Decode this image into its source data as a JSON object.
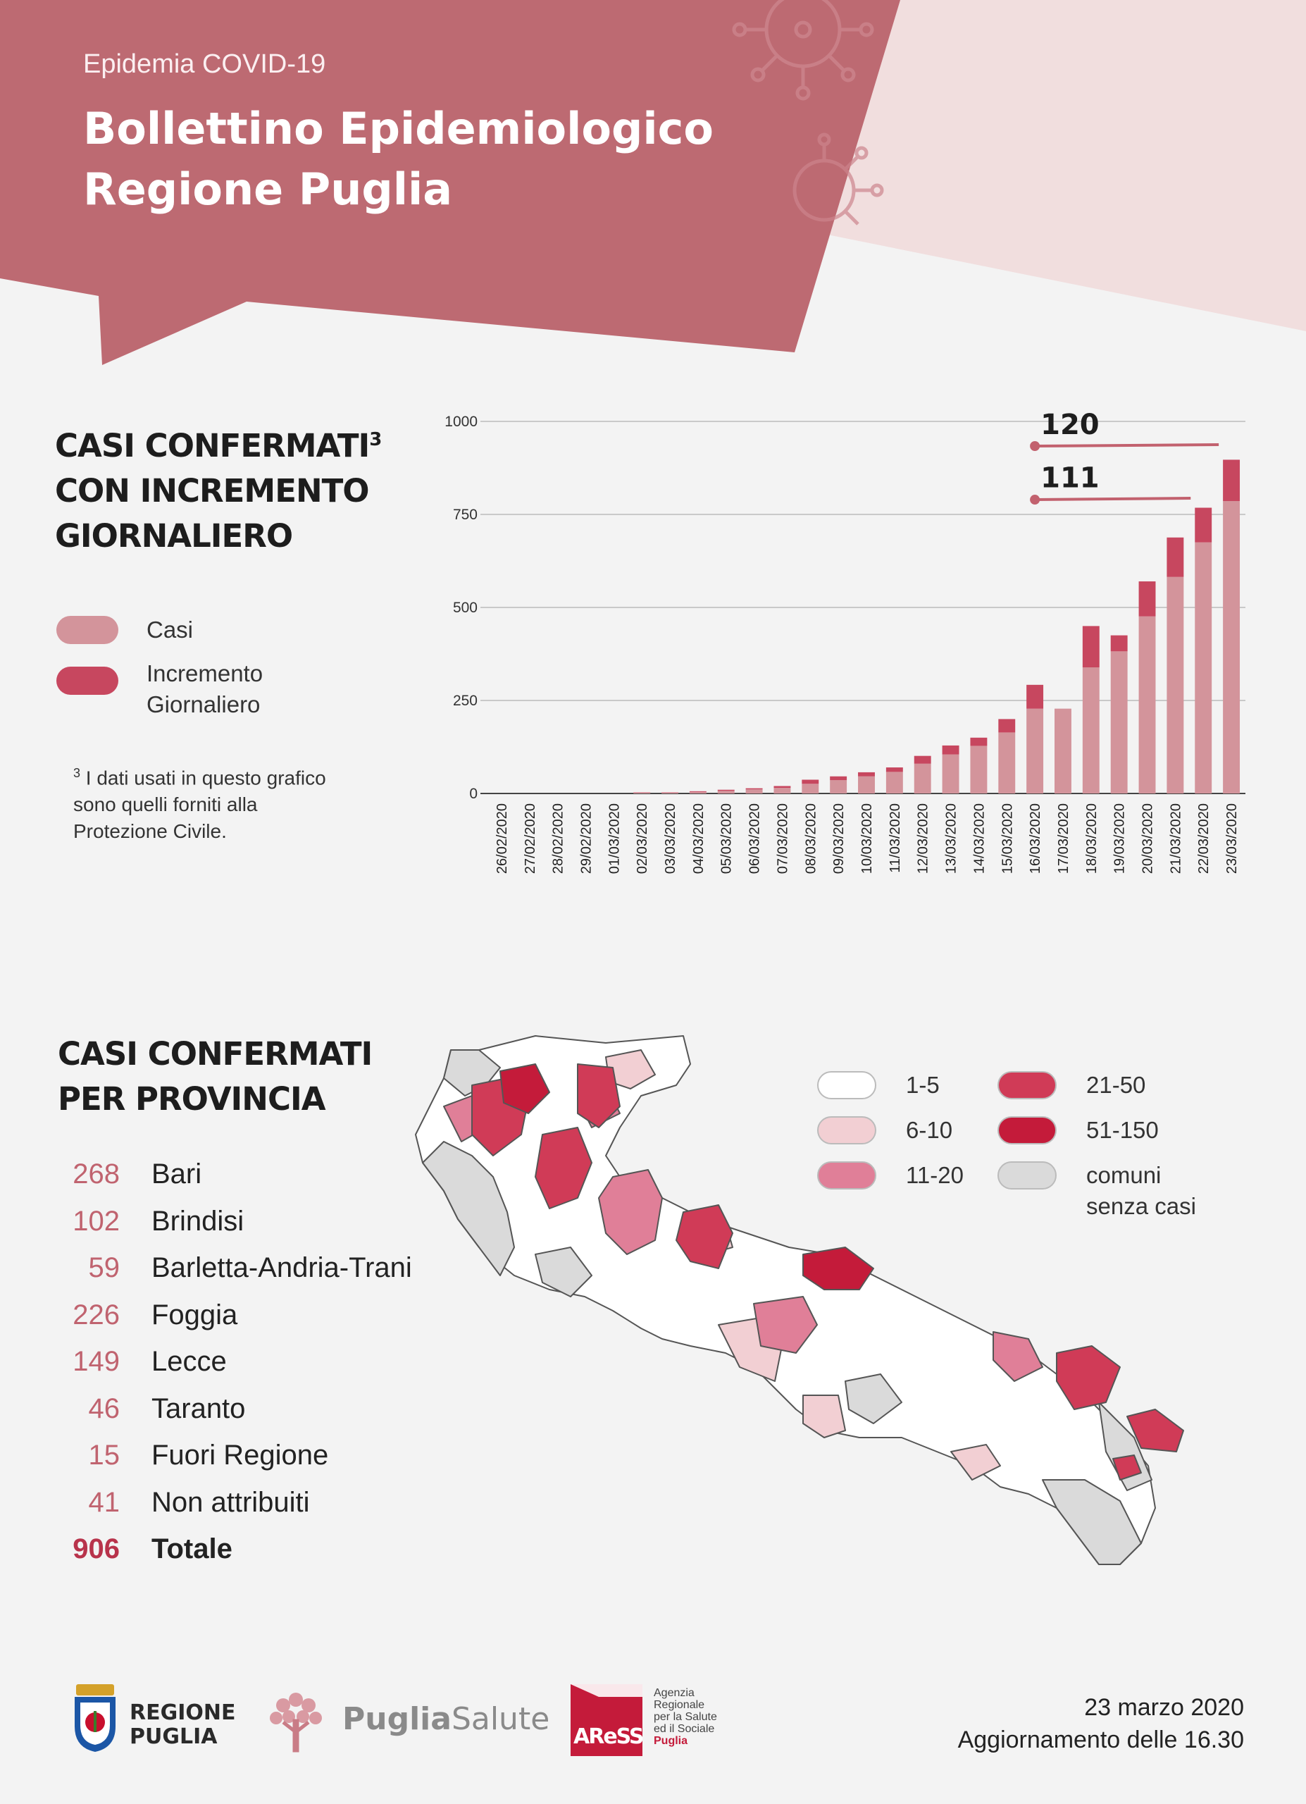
{
  "header": {
    "subtitle": "Epidemia COVID-19",
    "title_line1": "Bollettino Epidemiologico",
    "title_line2": "Regione Puglia"
  },
  "colors": {
    "header_bg": "#bd6a72",
    "header_light": "#f1dede",
    "casi": "#d3949b",
    "incremento": "#c7475f",
    "grid": "#c9c9c9"
  },
  "chart_section": {
    "title_line1": "CASI CONFERMATI",
    "title_sup": "3",
    "title_line2": "CON INCREMENTO",
    "title_line3": "GIORNALIERO",
    "legend": [
      {
        "label": "Casi",
        "color": "#d3949b"
      },
      {
        "label_line1": "Incremento",
        "label_line2": "Giornaliero",
        "color": "#c7475f"
      }
    ],
    "footnote_sup": "3",
    "footnote_line1": "I dati usati in questo grafico",
    "footnote_line2": "sono quelli forniti alla",
    "footnote_line3": "Protezione Civile."
  },
  "chart_data": {
    "type": "bar",
    "stacked": true,
    "categories": [
      "26/02/2020",
      "27/02/2020",
      "28/02/2020",
      "29/02/2020",
      "01/03/2020",
      "02/03/2020",
      "03/03/2020",
      "04/03/2020",
      "05/03/2020",
      "06/03/2020",
      "07/03/2020",
      "08/03/2020",
      "09/03/2020",
      "10/03/2020",
      "11/03/2020",
      "12/03/2020",
      "13/03/2020",
      "14/03/2020",
      "15/03/2020",
      "16/03/2020",
      "17/03/2020",
      "18/03/2020",
      "19/03/2020",
      "20/03/2020",
      "21/03/2020",
      "22/03/2020",
      "23/03/2020"
    ],
    "series": [
      {
        "name": "Casi",
        "values": [
          0,
          0,
          0,
          0,
          0,
          2,
          2,
          4,
          7,
          11,
          15,
          26,
          36,
          46,
          58,
          80,
          105,
          128,
          164,
          228,
          228,
          339,
          382,
          476,
          582,
          675,
          786
        ]
      },
      {
        "name": "Incremento Giornaliero",
        "values": [
          0,
          0,
          0,
          0,
          0,
          1,
          1,
          2,
          3,
          3,
          5,
          11,
          10,
          11,
          12,
          21,
          24,
          22,
          36,
          64,
          0,
          111,
          43,
          94,
          106,
          93,
          111
        ]
      }
    ],
    "annotations": [
      {
        "text": "120"
      },
      {
        "text": "111"
      }
    ],
    "yticks": [
      0,
      250,
      500,
      750,
      1000
    ],
    "ylim": [
      0,
      1000
    ],
    "grid": true
  },
  "province_section": {
    "title_line1": "CASI CONFERMATI",
    "title_line2": "PER PROVINCIA",
    "rows": [
      {
        "value": "268",
        "name": "Bari"
      },
      {
        "value": "102",
        "name": "Brindisi"
      },
      {
        "value": "59",
        "name": "Barletta-Andria-Trani"
      },
      {
        "value": "226",
        "name": "Foggia"
      },
      {
        "value": "149",
        "name": "Lecce"
      },
      {
        "value": "46",
        "name": "Taranto"
      },
      {
        "value": "15",
        "name": "Fuori Regione"
      },
      {
        "value": "41",
        "name": "Non attribuiti"
      },
      {
        "value": "906",
        "name": "Totale"
      }
    ]
  },
  "map_legend": [
    {
      "label": "1-5",
      "color": "#ffffff"
    },
    {
      "label": "6-10",
      "color": "#f2cfd3"
    },
    {
      "label": "11-20",
      "color": "#e07f98"
    },
    {
      "label": "21-50",
      "color": "#d03b57"
    },
    {
      "label": "51-150",
      "color": "#c41b3a"
    },
    {
      "label_line1": "comuni",
      "label_line2": "senza casi",
      "color": "#dadada"
    }
  ],
  "footer": {
    "logo1_line1": "REGIONE",
    "logo1_line2": "PUGLIA",
    "logo2_a": "Puglia",
    "logo2_b": "Salute",
    "logo3_badge": "AReSS",
    "logo3_l1": "Agenzia",
    "logo3_l2": "Regionale",
    "logo3_l3": "per la Salute",
    "logo3_l4": "ed il Sociale",
    "logo3_l5": "Puglia",
    "date": "23 marzo 2020",
    "update": "Aggiornamento delle 16.30"
  }
}
